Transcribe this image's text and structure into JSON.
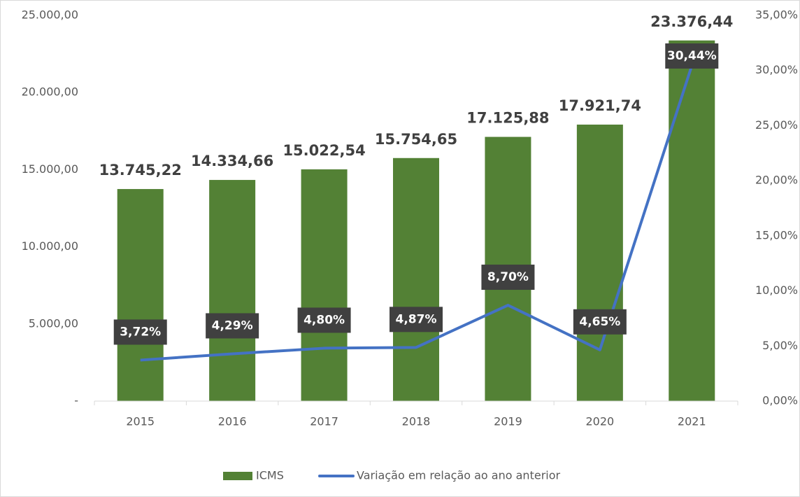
{
  "chart_data": {
    "type": "bar",
    "categories": [
      "2015",
      "2016",
      "2017",
      "2018",
      "2019",
      "2020",
      "2021"
    ],
    "series": [
      {
        "name": "ICMS",
        "type": "bar",
        "color": "#538135",
        "values": [
          13745.22,
          14334.66,
          15022.54,
          15754.65,
          17125.88,
          17921.74,
          23376.44
        ],
        "value_labels": [
          "13.745,22",
          "14.334,66",
          "15.022,54",
          "15.754,65",
          "17.125,88",
          "17.921,74",
          "23.376,44"
        ]
      },
      {
        "name": "Variação em relação ao ano anterior",
        "type": "line",
        "axis": "y2",
        "color": "#4472c4",
        "values": [
          3.72,
          4.29,
          4.8,
          4.87,
          8.7,
          4.65,
          30.44
        ],
        "value_labels": [
          "3,72%",
          "4,29%",
          "4,80%",
          "4,87%",
          "8,70%",
          "4,65%",
          "30,44%"
        ]
      }
    ],
    "ylim": [
      0,
      25000
    ],
    "yticks": [
      {
        "value": 0,
        "label": "-"
      },
      {
        "value": 5000,
        "label": "5.000,00"
      },
      {
        "value": 10000,
        "label": "10.000,00"
      },
      {
        "value": 15000,
        "label": "15.000,00"
      },
      {
        "value": 20000,
        "label": "20.000,00"
      },
      {
        "value": 25000,
        "label": "25.000,00"
      }
    ],
    "y2lim": [
      0,
      35
    ],
    "y2ticks": [
      {
        "value": 0,
        "label": "0,00%"
      },
      {
        "value": 5,
        "label": "5,00%"
      },
      {
        "value": 10,
        "label": "10,00%"
      },
      {
        "value": 15,
        "label": "15,00%"
      },
      {
        "value": 20,
        "label": "20,00%"
      },
      {
        "value": 25,
        "label": "25,00%"
      },
      {
        "value": 30,
        "label": "30,00%"
      },
      {
        "value": 35,
        "label": "35,00%"
      }
    ],
    "legend": "bottom"
  }
}
